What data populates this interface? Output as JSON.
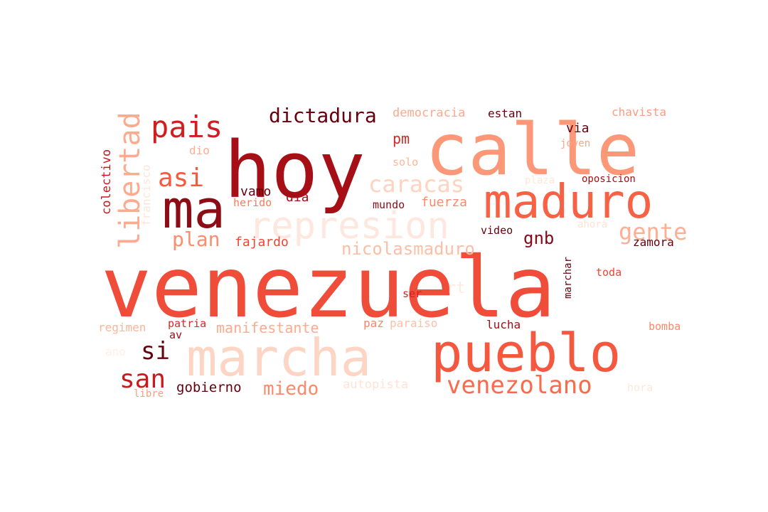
{
  "words": [
    {
      "text": "venezuela",
      "color": "#ef4c3a"
    },
    {
      "text": "hoy",
      "color": "#a50f15"
    },
    {
      "text": "calle",
      "color": "#fc9777"
    },
    {
      "text": "ma",
      "color": "#8e0c15"
    },
    {
      "text": "maduro",
      "color": "#f96144"
    },
    {
      "text": "represion",
      "color": "#fee7df"
    },
    {
      "text": "pueblo",
      "color": "#f6573f"
    },
    {
      "text": "marcha",
      "color": "#fdd5c4"
    },
    {
      "text": "pais",
      "color": "#d01d1f"
    },
    {
      "text": "libertad",
      "color": "#fcab8f"
    },
    {
      "text": "dictadura",
      "color": "#67000d"
    },
    {
      "text": "asi",
      "color": "#f7593f"
    },
    {
      "text": "caracas",
      "color": "#fdd3c1"
    },
    {
      "text": "gente",
      "color": "#fdae94"
    },
    {
      "text": "plan",
      "color": "#fc8d6d"
    },
    {
      "text": "nicolasmaduro",
      "color": "#fcbea5"
    },
    {
      "text": "gnb",
      "color": "#86091a"
    },
    {
      "text": "fajardo",
      "color": "#ef4533"
    },
    {
      "text": "vamo",
      "color": "#67000d"
    },
    {
      "text": "dia",
      "color": "#a50f15"
    },
    {
      "text": "fuerza",
      "color": "#fc8a6a"
    },
    {
      "text": "mundo",
      "color": "#8e0c15"
    },
    {
      "text": "herido",
      "color": "#fb7b5b"
    },
    {
      "text": "dio",
      "color": "#fcae94"
    },
    {
      "text": "colectivo",
      "color": "#ca171c"
    },
    {
      "text": "francisco",
      "color": "#fee6da"
    },
    {
      "text": "democracia",
      "color": "#fcaa8d"
    },
    {
      "text": "estan",
      "color": "#67000d"
    },
    {
      "text": "chavista",
      "color": "#fc9d7f"
    },
    {
      "text": "pm",
      "color": "#d92723"
    },
    {
      "text": "solo",
      "color": "#fcb69b"
    },
    {
      "text": "via",
      "color": "#67000d"
    },
    {
      "text": "joven",
      "color": "#fca486"
    },
    {
      "text": "plaza",
      "color": "#fee6da"
    },
    {
      "text": "oposicion",
      "color": "#a50f15"
    },
    {
      "text": "ahora",
      "color": "#fee3d6"
    },
    {
      "text": "video",
      "color": "#67000d"
    },
    {
      "text": "zamora",
      "color": "#67000d"
    },
    {
      "text": "marchar",
      "color": "#67000d"
    },
    {
      "text": "toda",
      "color": "#f14432"
    },
    {
      "text": "ser",
      "color": "#d42020"
    },
    {
      "text": "rt",
      "color": "#feeae1"
    },
    {
      "text": "regimen",
      "color": "#fcb499"
    },
    {
      "text": "patria",
      "color": "#d92723"
    },
    {
      "text": "av",
      "color": "#a50f15"
    },
    {
      "text": "manifestante",
      "color": "#fcab8f"
    },
    {
      "text": "paz",
      "color": "#fc8565"
    },
    {
      "text": "paraiso",
      "color": "#fcbfa7"
    },
    {
      "text": "lucha",
      "color": "#a50f15"
    },
    {
      "text": "bomba",
      "color": "#fc8767"
    },
    {
      "text": "si",
      "color": "#67000d"
    },
    {
      "text": "ano",
      "color": "#fff0e8"
    },
    {
      "text": "san",
      "color": "#cb181d"
    },
    {
      "text": "gobierno",
      "color": "#67000d"
    },
    {
      "text": "miedo",
      "color": "#fc8a6a"
    },
    {
      "text": "libre",
      "color": "#fc9e80"
    },
    {
      "text": "autopista",
      "color": "#fee3d6"
    },
    {
      "text": "venezolano",
      "color": "#fb6b4b"
    },
    {
      "text": "hora",
      "color": "#fee6da"
    }
  ]
}
